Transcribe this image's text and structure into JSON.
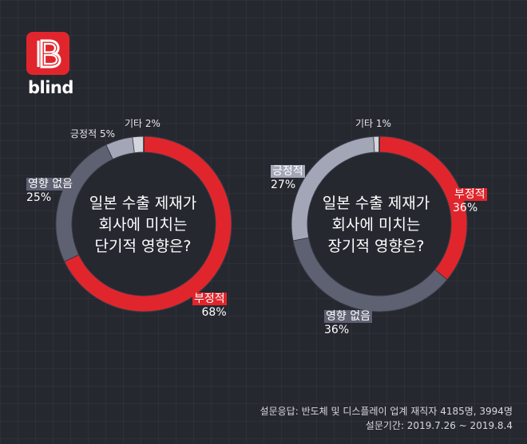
{
  "brand": {
    "name": "blind",
    "logo_icon": "blind-b-logo-icon",
    "logo_color": "#e0262c"
  },
  "chart_data": [
    {
      "type": "pie",
      "style": "donut",
      "title_lines": [
        "일본 수출 제재가",
        "회사에 미치는",
        "단기적 영향은?"
      ],
      "slices": [
        {
          "label": "부정적",
          "value": 68,
          "value_text": "68%",
          "color": "#e0262c"
        },
        {
          "label": "영향 없음",
          "value": 25,
          "value_text": "25%",
          "color": "#5e6172"
        },
        {
          "label": "긍정적",
          "value": 5,
          "value_text": "5%",
          "color": "#a3a6b6"
        },
        {
          "label": "기타",
          "value": 2,
          "value_text": "2%",
          "color": "#d4d5dc"
        }
      ]
    },
    {
      "type": "pie",
      "style": "donut",
      "title_lines": [
        "일본 수출 제재가",
        "회사에 미치는",
        "장기적 영향은?"
      ],
      "slices": [
        {
          "label": "부정적",
          "value": 36,
          "value_text": "36%",
          "color": "#e0262c"
        },
        {
          "label": "영향 없음",
          "value": 36,
          "value_text": "36%",
          "color": "#5e6172"
        },
        {
          "label": "긍정적",
          "value": 27,
          "value_text": "27%",
          "color": "#a3a6b6"
        },
        {
          "label": "기타",
          "value": 1,
          "value_text": "1%",
          "color": "#d4d5dc"
        }
      ]
    }
  ],
  "footnote": {
    "respondents": "설문응답: 반도체 및 디스플레이 업계 재직자 4185명, 3994명",
    "period": "설문기간: 2019.7.26 ~ 2019.8.4"
  }
}
